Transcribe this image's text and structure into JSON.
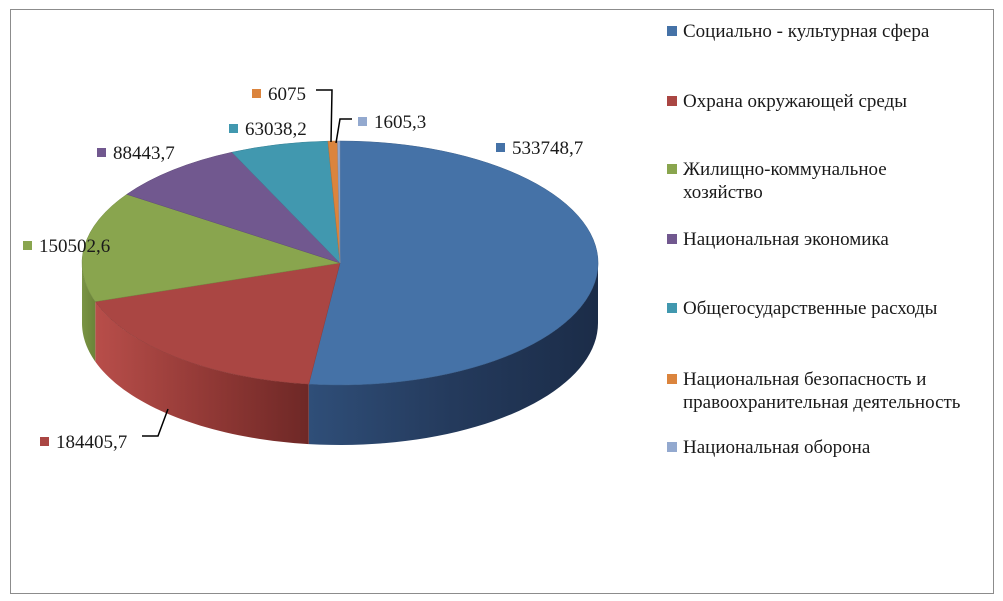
{
  "chart_data": {
    "type": "pie",
    "title": "",
    "legend_position": "right",
    "series": [
      {
        "name": "Социально - культурная сфера",
        "value": 533748.7,
        "label": "533748,7",
        "color": "#4572a7"
      },
      {
        "name": "Охрана окружающей среды",
        "value": 184405.7,
        "label": "184405,7",
        "color": "#aa4643"
      },
      {
        "name": "Жилищно-коммунальное хозяйство",
        "value": 150502.6,
        "label": "150502,6",
        "color": "#89a54e"
      },
      {
        "name": "Национальная экономика",
        "value": 88443.7,
        "label": "88443,7",
        "color": "#71588f"
      },
      {
        "name": "Общегосударственные расходы",
        "value": 63038.2,
        "label": "63038,2",
        "color": "#4198af"
      },
      {
        "name": "Национальная безопасность и правоохранительная деятельность",
        "value": 6075,
        "label": "6075",
        "color": "#db843d"
      },
      {
        "name": "Национальная оборона",
        "value": 1605.3,
        "label": "1605,3",
        "color": "#93a9cf"
      }
    ]
  }
}
